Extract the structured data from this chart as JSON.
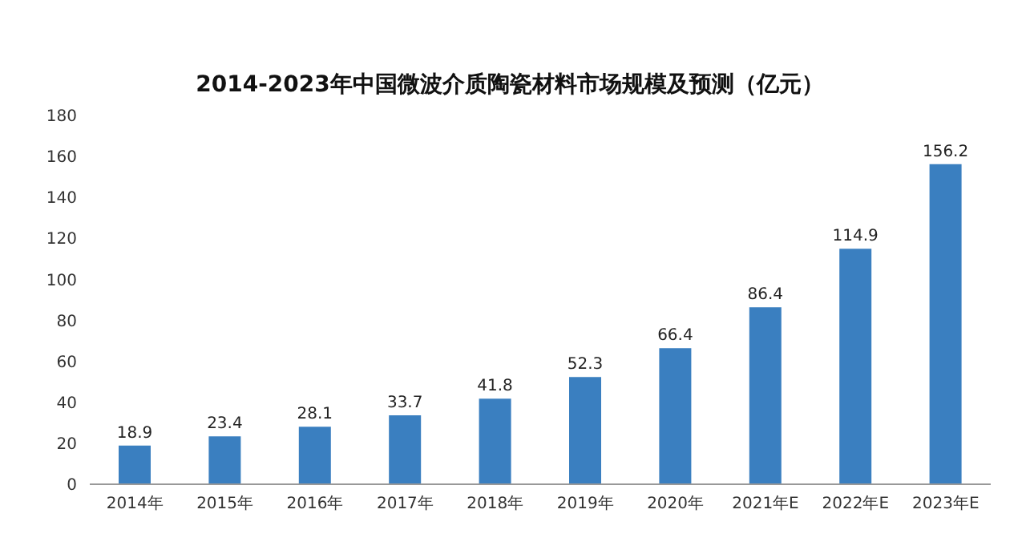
{
  "chart_data": {
    "type": "bar",
    "title": "2014-2023年中国微波介质陶瓷材料市场规模及预测（亿元）",
    "categories": [
      "2014年",
      "2015年",
      "2016年",
      "2017年",
      "2018年",
      "2019年",
      "2020年",
      "2021年E",
      "2022年E",
      "2023年E"
    ],
    "values": [
      18.9,
      23.4,
      28.1,
      33.7,
      41.8,
      52.3,
      66.4,
      86.4,
      114.9,
      156.2
    ],
    "color": "#3a7fc0",
    "ylim": [
      0,
      180
    ],
    "yticks": [
      0,
      20,
      40,
      60,
      80,
      100,
      120,
      140,
      160,
      180
    ],
    "data_labels": true,
    "grid": false
  }
}
